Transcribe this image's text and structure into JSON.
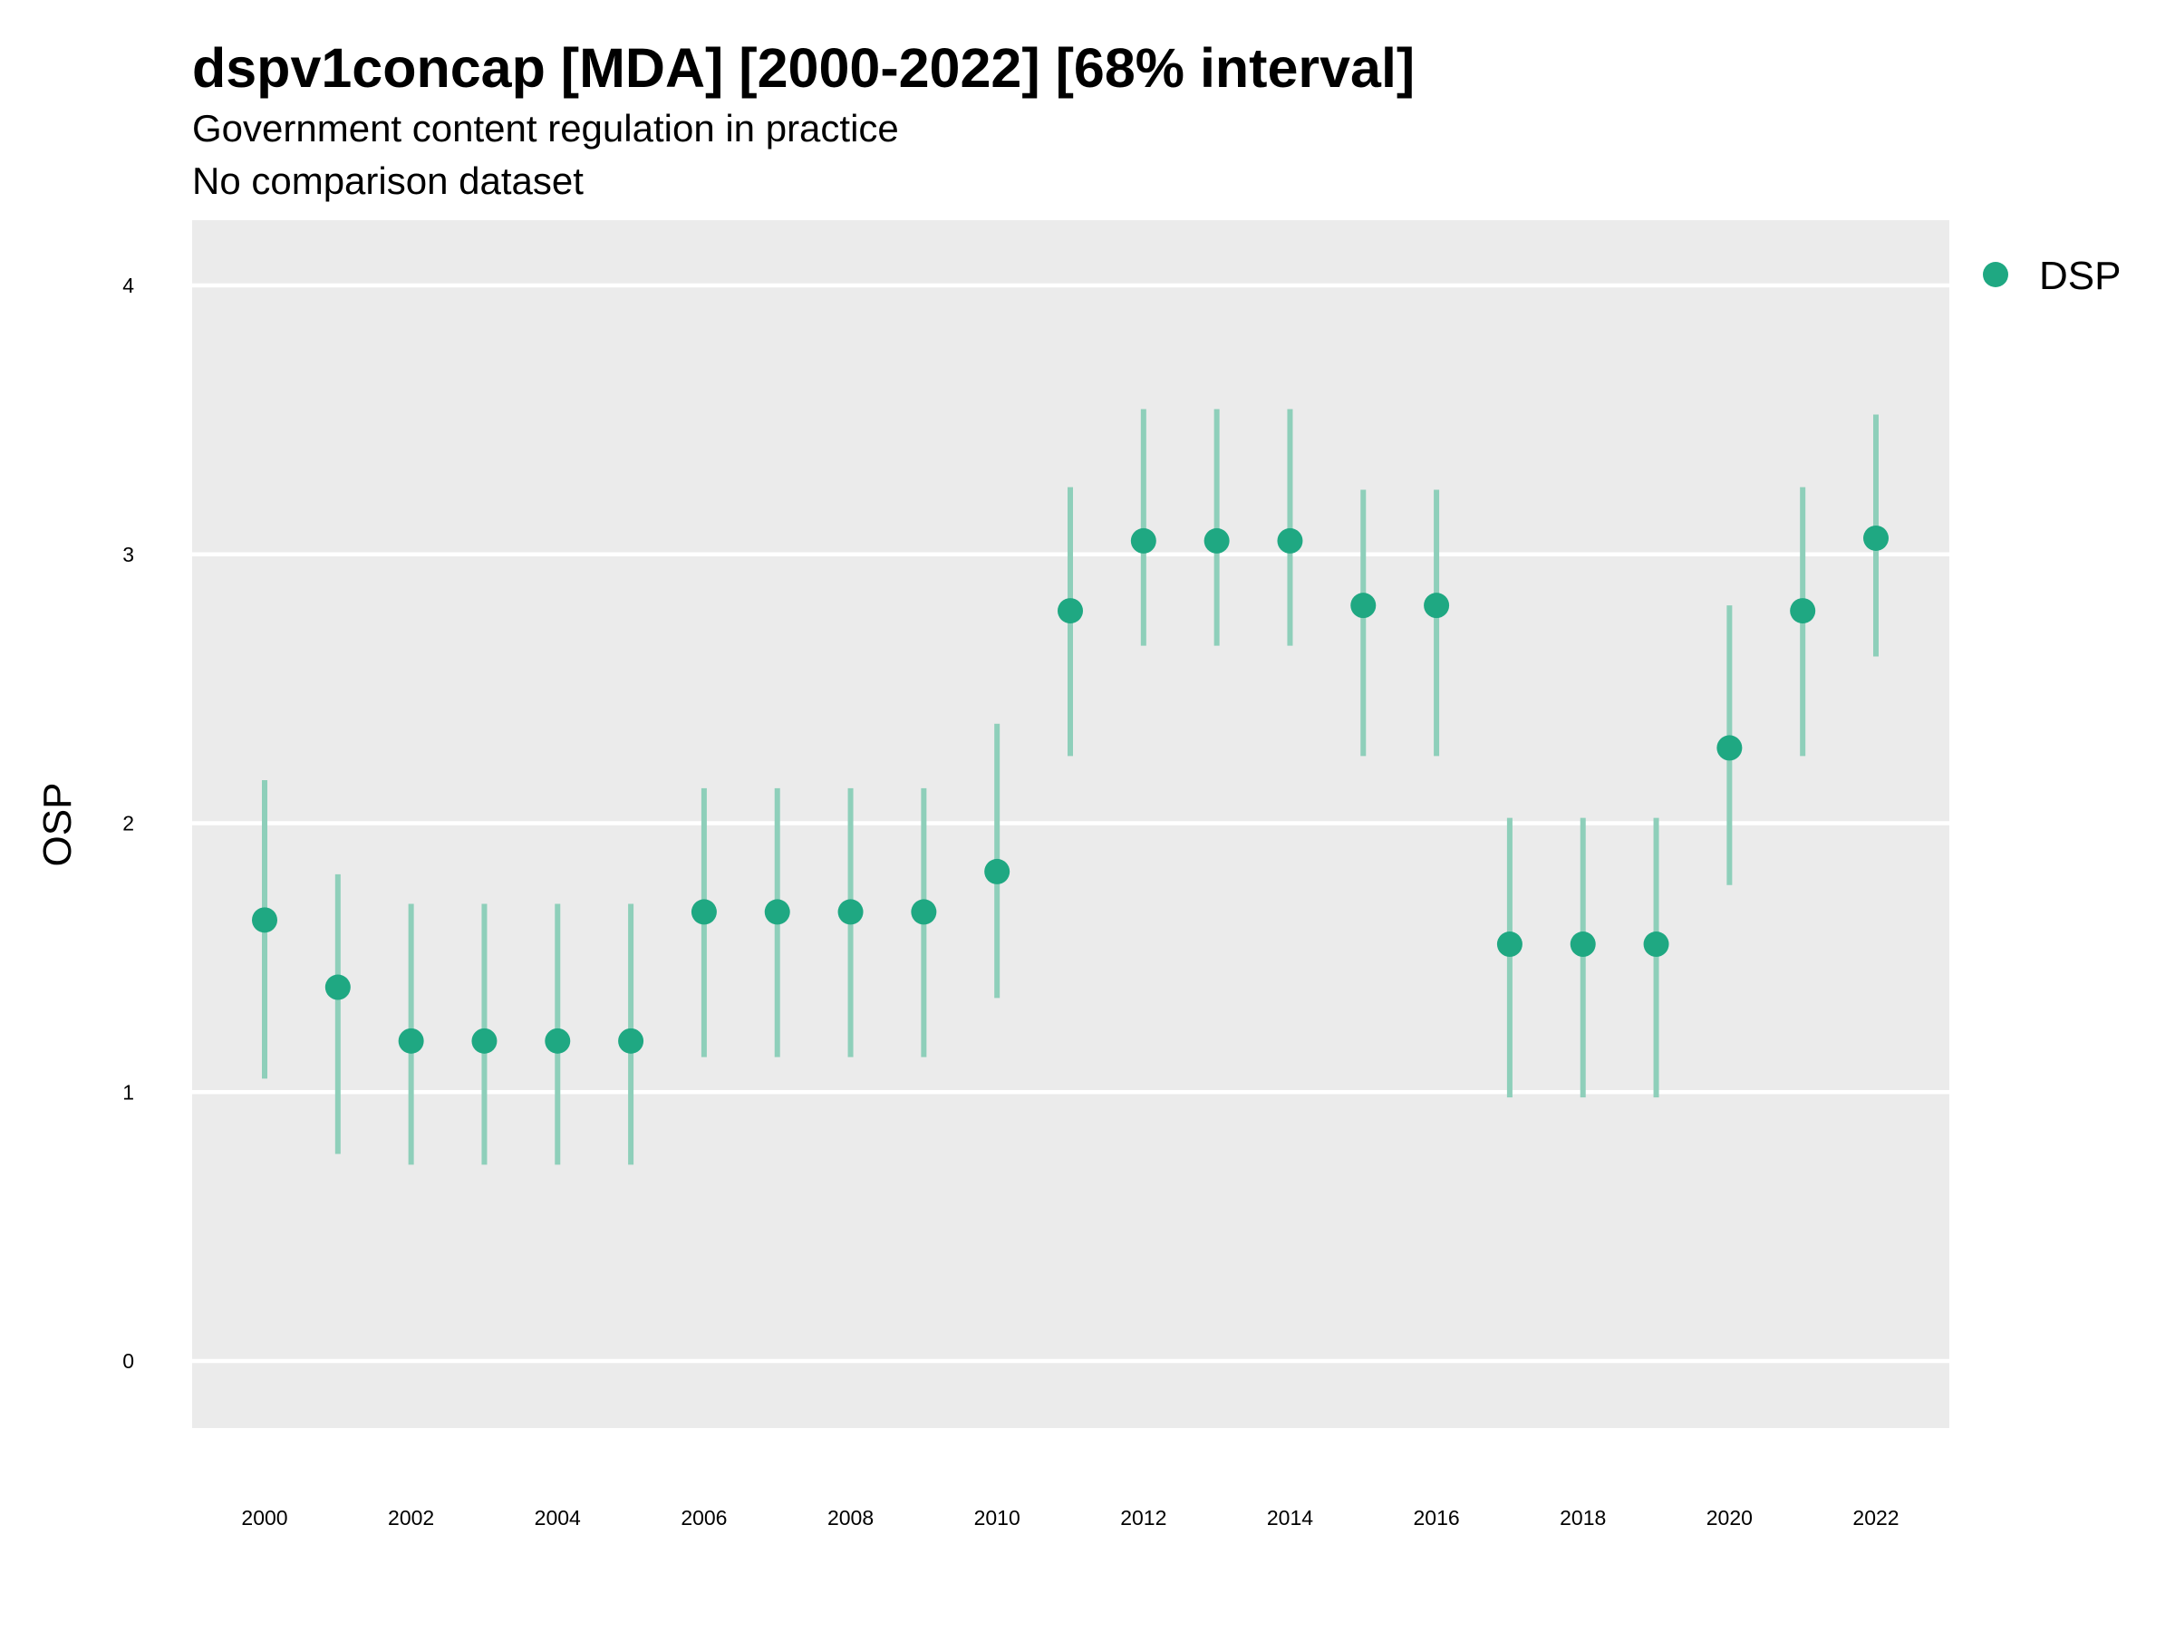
{
  "chart_data": {
    "type": "scatter",
    "title": "dspv1concap [MDA] [2000-2022] [68% interval]",
    "subtitle": "Government content regulation in practice",
    "caption_line": "No comparison dataset",
    "xlabel": "",
    "ylabel": "OSP",
    "ylim": [
      -0.25,
      4.25
    ],
    "xlim": [
      1999,
      2023
    ],
    "yticks": [
      "0",
      "1",
      "2",
      "3",
      "4"
    ],
    "xticks": [
      "2000",
      "2002",
      "2004",
      "2006",
      "2008",
      "2010",
      "2012",
      "2014",
      "2016",
      "2018",
      "2020",
      "2022"
    ],
    "legend": {
      "position": "right",
      "entries": [
        "DSP"
      ]
    },
    "grid": true,
    "series": [
      {
        "name": "DSP",
        "color": "#1FA882",
        "interval_color": "#8ECFBA",
        "x": [
          2000,
          2001,
          2002,
          2003,
          2004,
          2005,
          2006,
          2007,
          2008,
          2009,
          2010,
          2011,
          2012,
          2013,
          2014,
          2015,
          2016,
          2017,
          2018,
          2019,
          2020,
          2021,
          2022
        ],
        "y": [
          1.64,
          1.39,
          1.19,
          1.19,
          1.19,
          1.19,
          1.67,
          1.67,
          1.67,
          1.67,
          1.82,
          2.79,
          3.05,
          3.05,
          3.05,
          2.81,
          2.81,
          1.55,
          1.55,
          1.55,
          2.28,
          2.79,
          3.06
        ],
        "lower": [
          1.05,
          0.77,
          0.73,
          0.73,
          0.73,
          0.73,
          1.13,
          1.13,
          1.13,
          1.13,
          1.35,
          2.25,
          2.66,
          2.66,
          2.66,
          2.25,
          2.25,
          0.98,
          0.98,
          0.98,
          1.77,
          2.25,
          2.62
        ],
        "upper": [
          2.16,
          1.81,
          1.7,
          1.7,
          1.7,
          1.7,
          2.13,
          2.13,
          2.13,
          2.13,
          2.37,
          3.25,
          3.54,
          3.54,
          3.54,
          3.24,
          3.24,
          2.02,
          2.02,
          2.02,
          2.81,
          3.25,
          3.52
        ]
      }
    ]
  }
}
